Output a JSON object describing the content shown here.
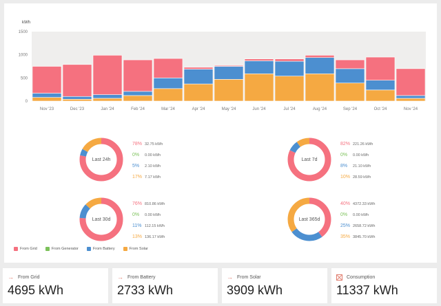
{
  "chart_data": {
    "type": "bar",
    "stacked": true,
    "ylabel": "kWh",
    "ylim": [
      0,
      1500
    ],
    "yticks": [
      "1500",
      "1000",
      "500",
      "0"
    ],
    "grid": false,
    "categories": [
      "Nov '23",
      "Dec '23",
      "Jan '24",
      "Feb '24",
      "Mar '24",
      "Apr '24",
      "May '24",
      "Jun '24",
      "Jul '24",
      "Aug '24",
      "Sep '24",
      "Oct '24",
      "Nov '24"
    ],
    "series": [
      {
        "name": "From Solar",
        "color": "#f5a942",
        "values": [
          80,
          40,
          60,
          120,
          270,
          370,
          470,
          590,
          540,
          590,
          390,
          240,
          60
        ]
      },
      {
        "name": "From Battery",
        "color": "#4c8fd0",
        "values": [
          90,
          60,
          80,
          90,
          230,
          320,
          280,
          280,
          320,
          350,
          310,
          210,
          60
        ]
      },
      {
        "name": "From Generator",
        "color": "#7cc15a",
        "values": [
          0,
          0,
          0,
          0,
          0,
          0,
          0,
          0,
          0,
          0,
          0,
          0,
          0
        ]
      },
      {
        "name": "From Grid",
        "color": "#f5717f",
        "values": [
          580,
          690,
          850,
          680,
          420,
          40,
          20,
          40,
          50,
          50,
          190,
          500,
          580
        ]
      }
    ]
  },
  "donuts": [
    {
      "label": "Last 24h",
      "rows": [
        {
          "pct": "78%",
          "value": "32.75 kWh",
          "color": "#f5717f"
        },
        {
          "pct": "0%",
          "value": "0.00 kWh",
          "color": "#7cc15a"
        },
        {
          "pct": "5%",
          "value": "2.10 kWh",
          "color": "#4c8fd0"
        },
        {
          "pct": "17%",
          "value": "7.17 kWh",
          "color": "#f5a942"
        }
      ]
    },
    {
      "label": "Last 7d",
      "rows": [
        {
          "pct": "82%",
          "value": "221.26 kWh",
          "color": "#f5717f"
        },
        {
          "pct": "0%",
          "value": "0.00 kWh",
          "color": "#7cc15a"
        },
        {
          "pct": "8%",
          "value": "21.10 kWh",
          "color": "#4c8fd0"
        },
        {
          "pct": "10%",
          "value": "28.59 kWh",
          "color": "#f5a942"
        }
      ]
    },
    {
      "label": "Last 30d",
      "rows": [
        {
          "pct": "76%",
          "value": "810.86 kWh",
          "color": "#f5717f"
        },
        {
          "pct": "0%",
          "value": "0.00 kWh",
          "color": "#7cc15a"
        },
        {
          "pct": "11%",
          "value": "112.15 kWh",
          "color": "#4c8fd0"
        },
        {
          "pct": "13%",
          "value": "136.17 kWh",
          "color": "#f5a942"
        }
      ]
    },
    {
      "label": "Last 365d",
      "rows": [
        {
          "pct": "40%",
          "value": "4372.33 kWh",
          "color": "#f5717f"
        },
        {
          "pct": "0%",
          "value": "0.00 kWh",
          "color": "#7cc15a"
        },
        {
          "pct": "25%",
          "value": "2658.72 kWh",
          "color": "#4c8fd0"
        },
        {
          "pct": "35%",
          "value": "3845.70 kWh",
          "color": "#f5a942"
        }
      ]
    }
  ],
  "legend": [
    {
      "label": "From Grid",
      "color": "#f5717f"
    },
    {
      "label": "From Generator",
      "color": "#7cc15a"
    },
    {
      "label": "From Battery",
      "color": "#4c8fd0"
    },
    {
      "label": "From Solar",
      "color": "#f5a942"
    }
  ],
  "cards": [
    {
      "title": "From Grid",
      "value": "4695 kWh",
      "icon": "arrow-right-icon"
    },
    {
      "title": "From Battery",
      "value": "2733 kWh",
      "icon": "arrow-right-icon"
    },
    {
      "title": "From Solar",
      "value": "3909 kWh",
      "icon": "arrow-right-icon"
    },
    {
      "title": "Consumption",
      "value": "11337 kWh",
      "icon": "consumption-box-icon"
    }
  ]
}
